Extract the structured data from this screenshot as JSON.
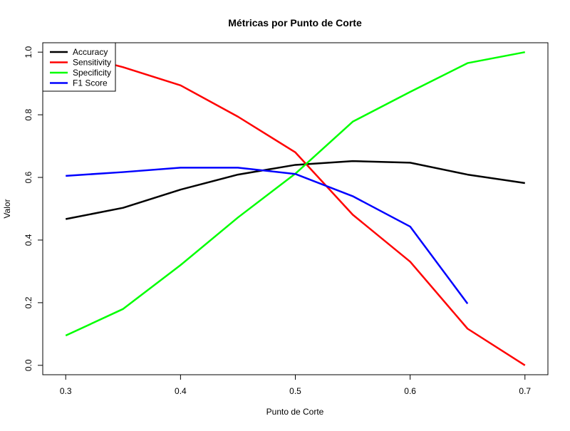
{
  "chart_data": {
    "type": "line",
    "title": "Métricas por Punto de Corte",
    "xlabel": "Punto de Corte",
    "ylabel": "Valor",
    "x": [
      0.3,
      0.35,
      0.4,
      0.45,
      0.5,
      0.55,
      0.6,
      0.65,
      0.7
    ],
    "xlim": [
      0.28,
      0.72
    ],
    "ylim": [
      -0.03,
      1.03
    ],
    "x_ticks": [
      "0.3",
      "0.4",
      "0.5",
      "0.6",
      "0.7"
    ],
    "y_ticks": [
      "0.0",
      "0.2",
      "0.4",
      "0.6",
      "0.8",
      "1.0"
    ],
    "grid": false,
    "legend_position": "top-left",
    "series": [
      {
        "name": "Accuracy",
        "color": "#000000",
        "values": [
          0.467,
          0.503,
          0.561,
          0.609,
          0.64,
          0.652,
          0.647,
          0.609,
          0.582
        ]
      },
      {
        "name": "Sensitivity",
        "color": "#ff0000",
        "values": [
          1.0,
          0.952,
          0.894,
          0.794,
          0.68,
          0.481,
          0.331,
          0.117,
          0.0
        ]
      },
      {
        "name": "Specificity",
        "color": "#00ff00",
        "values": [
          0.095,
          0.18,
          0.32,
          0.472,
          0.612,
          0.778,
          0.873,
          0.965,
          1.0
        ]
      },
      {
        "name": "F1 Score",
        "color": "#0000ff",
        "values": [
          0.605,
          0.617,
          0.631,
          0.631,
          0.611,
          0.54,
          0.443,
          0.197,
          null
        ]
      }
    ]
  }
}
